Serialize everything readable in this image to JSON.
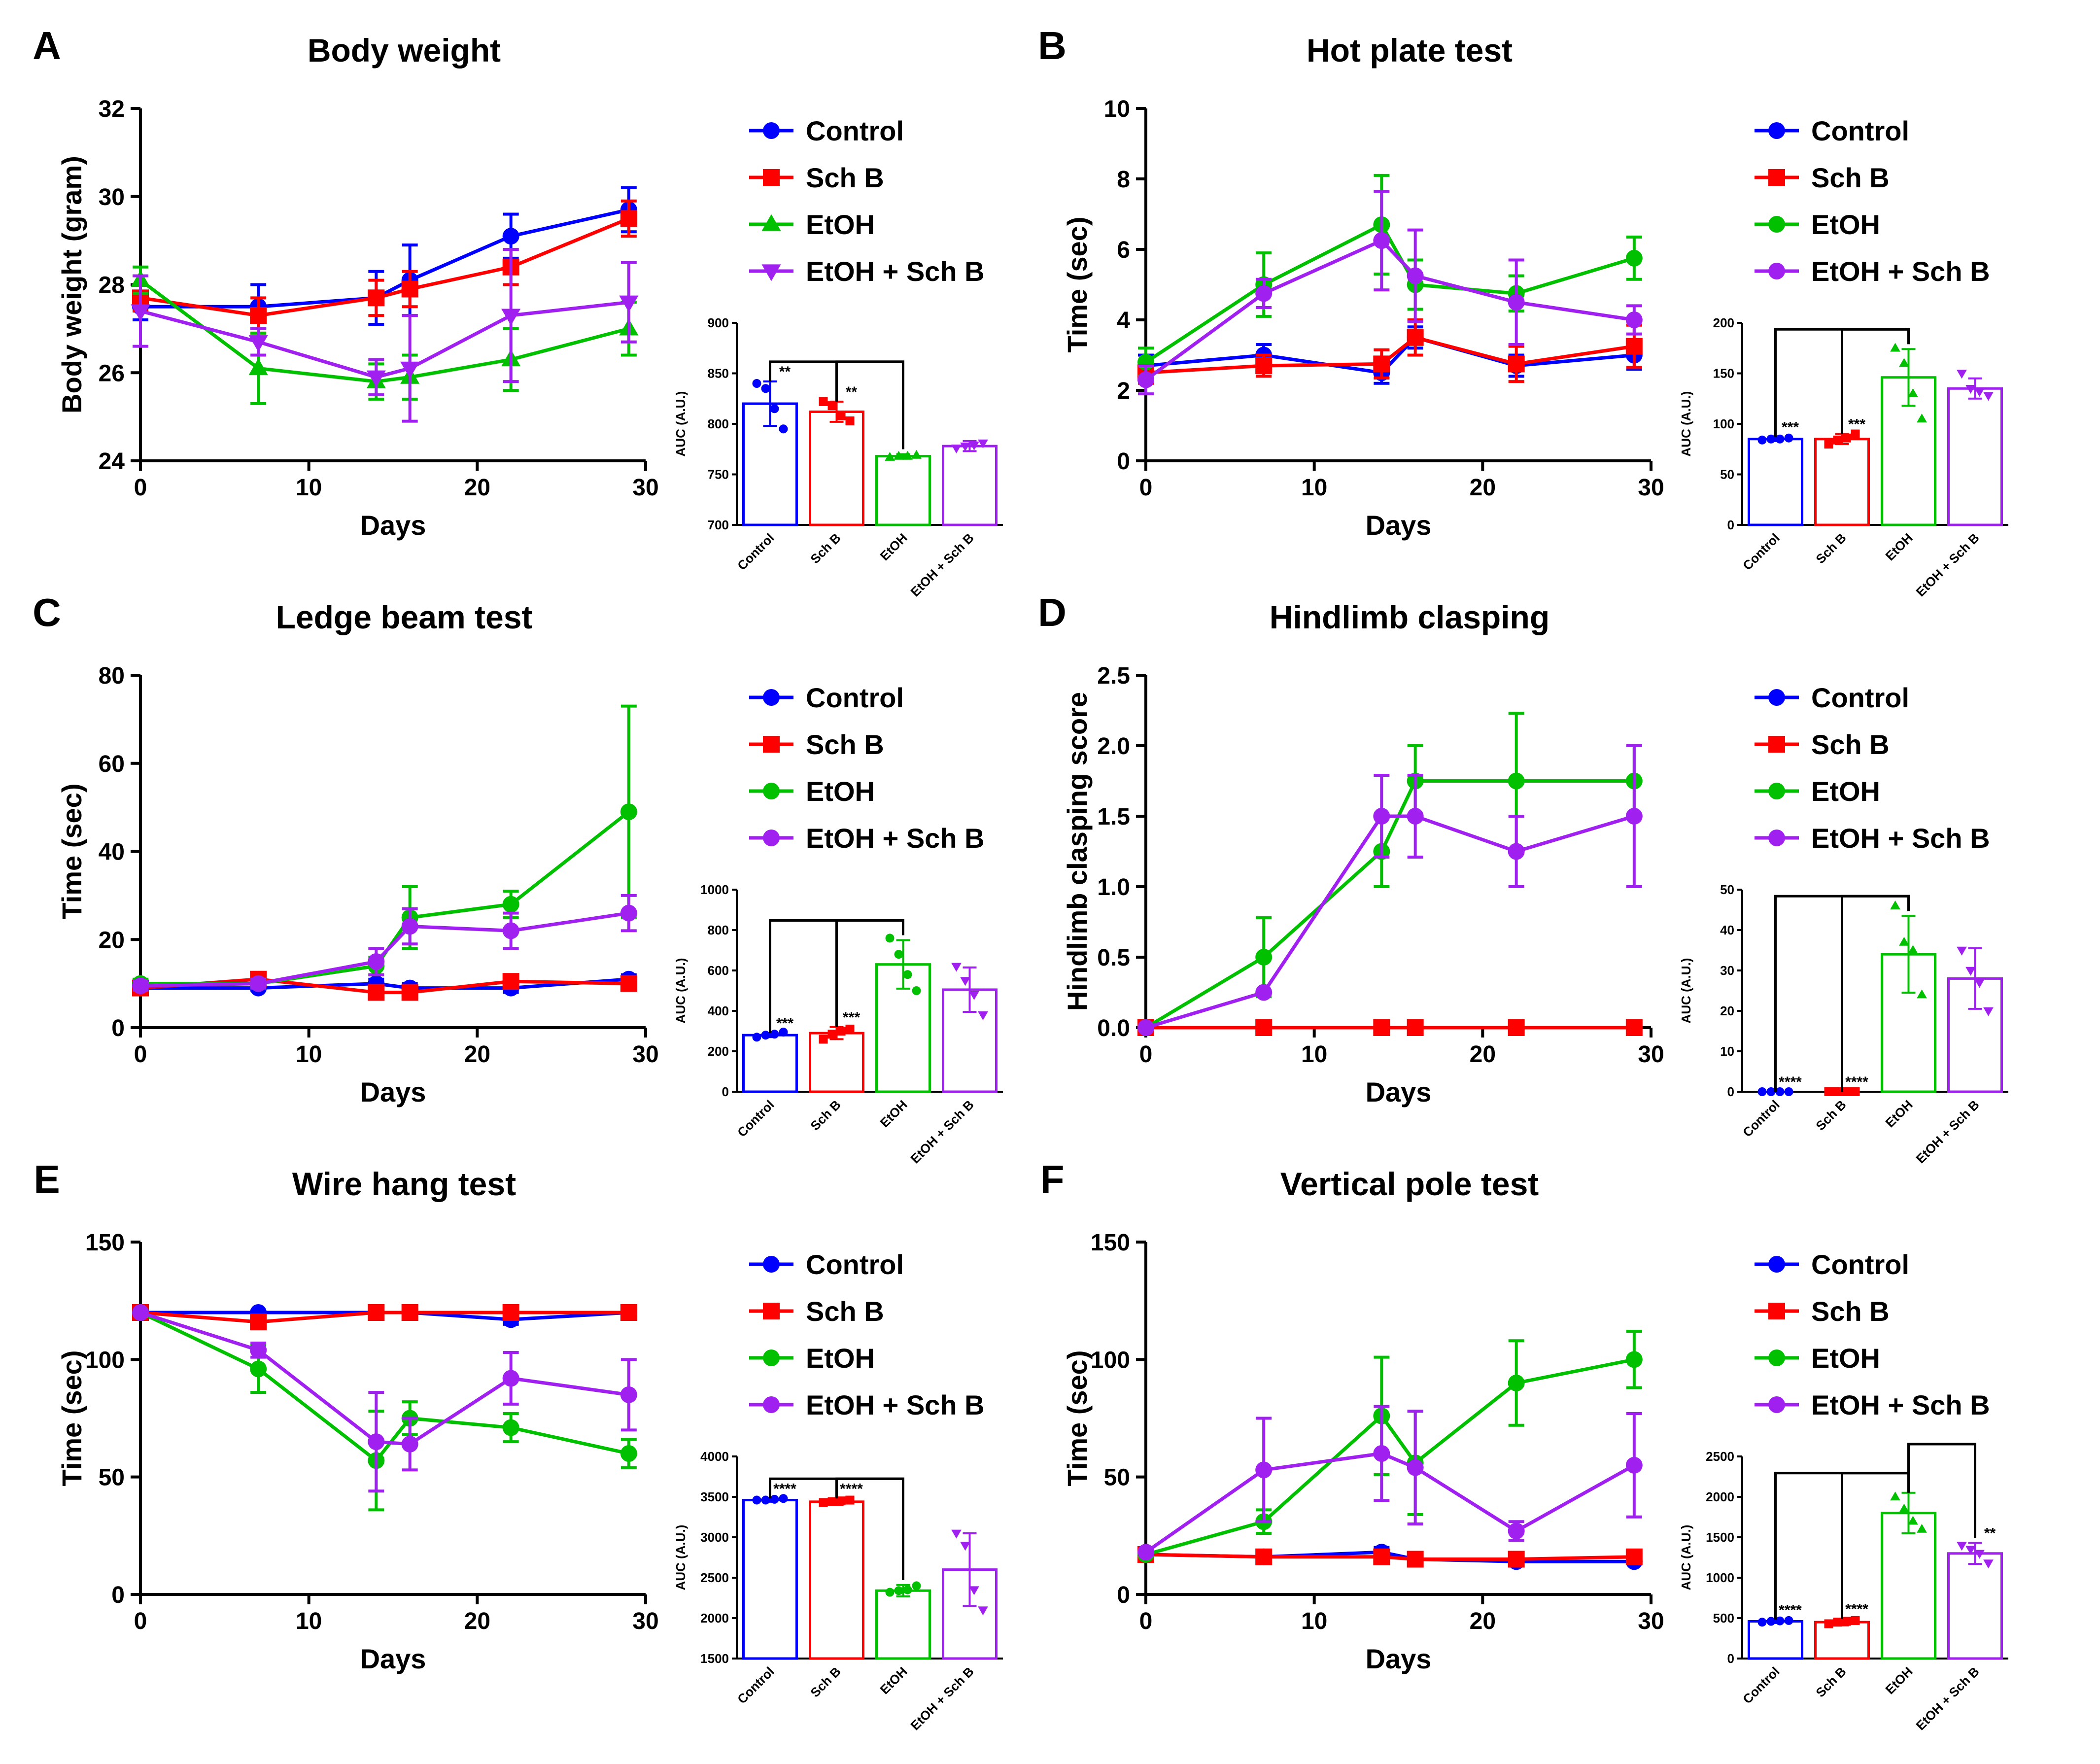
{
  "series_meta": [
    {
      "name": "Control",
      "color": "#0000ff",
      "marker": "circle"
    },
    {
      "name": "Sch B",
      "color": "#ff0000",
      "marker": "square"
    },
    {
      "name": "EtOH",
      "color": "#00c000",
      "marker": "circle"
    },
    {
      "name": "EtOH + Sch B",
      "color": "#a020f0",
      "marker": "circle"
    }
  ],
  "chart_data": [
    {
      "panel": "A",
      "type": "line",
      "title": "Body weight",
      "xlabel": "Days",
      "ylabel": "Body weight (gram)",
      "xlim": [
        0,
        30
      ],
      "xticks": [
        0,
        10,
        20,
        30
      ],
      "ylim": [
        24,
        32
      ],
      "yticks": [
        24,
        26,
        28,
        30,
        32
      ],
      "x": [
        0,
        7,
        14,
        16,
        22,
        29
      ],
      "markers": [
        "circle",
        "square",
        "triangle-up",
        "triangle-down"
      ],
      "series": [
        {
          "name": "Control",
          "values": [
            27.5,
            27.5,
            27.7,
            28.1,
            29.1,
            29.7
          ],
          "err": [
            0.3,
            0.5,
            0.6,
            0.8,
            0.5,
            0.5
          ]
        },
        {
          "name": "Sch B",
          "values": [
            27.7,
            27.3,
            27.7,
            27.9,
            28.4,
            29.5
          ],
          "err": [
            0.3,
            0.4,
            0.4,
            0.4,
            0.4,
            0.4
          ]
        },
        {
          "name": "EtOH",
          "values": [
            28.1,
            26.1,
            25.8,
            25.9,
            26.3,
            27.0
          ],
          "err": [
            0.3,
            0.8,
            0.4,
            0.5,
            0.7,
            0.6
          ]
        },
        {
          "name": "EtOH + Sch B",
          "values": [
            27.4,
            26.7,
            25.9,
            26.1,
            27.3,
            27.6
          ],
          "err": [
            0.8,
            0.3,
            0.4,
            1.2,
            1.5,
            0.9
          ]
        }
      ],
      "auc": {
        "ylim": [
          700,
          900
        ],
        "yticks": [
          700,
          750,
          800,
          850,
          900
        ],
        "ylabel": "AUC (A.U.)",
        "values": [
          820,
          812,
          768,
          778
        ],
        "err": [
          22,
          10,
          2,
          5
        ],
        "points": [
          [
            840,
            835,
            815,
            795
          ],
          [
            822,
            818,
            808,
            803
          ],
          [
            767,
            768,
            768,
            769
          ],
          [
            776,
            778,
            779,
            781
          ]
        ],
        "sig": [
          "**",
          "**",
          "",
          ""
        ],
        "brackets": [
          [
            0,
            2
          ],
          [
            1,
            2
          ]
        ]
      }
    },
    {
      "panel": "B",
      "type": "line",
      "title": "Hot plate test",
      "xlabel": "Days",
      "ylabel": "Time (sec)",
      "xlim": [
        0,
        30
      ],
      "xticks": [
        0,
        10,
        20,
        30
      ],
      "ylim": [
        0,
        10
      ],
      "yticks": [
        0,
        2,
        4,
        6,
        8,
        10
      ],
      "x": [
        0,
        7,
        14,
        16,
        22,
        29
      ],
      "markers": [
        "circle",
        "square",
        "circle",
        "circle"
      ],
      "series": [
        {
          "name": "Control",
          "values": [
            2.7,
            3.0,
            2.5,
            3.5,
            2.7,
            3.0
          ],
          "err": [
            0.3,
            0.3,
            0.3,
            0.3,
            0.3,
            0.4
          ]
        },
        {
          "name": "Sch B",
          "values": [
            2.5,
            2.7,
            2.75,
            3.5,
            2.75,
            3.25
          ],
          "err": [
            0.3,
            0.3,
            0.4,
            0.5,
            0.5,
            0.6
          ]
        },
        {
          "name": "EtOH",
          "values": [
            2.8,
            5.0,
            6.7,
            5.0,
            4.75,
            5.75
          ],
          "err": [
            0.4,
            0.9,
            1.4,
            0.7,
            0.5,
            0.6
          ]
        },
        {
          "name": "EtOH + Sch B",
          "values": [
            2.3,
            4.75,
            6.25,
            5.25,
            4.5,
            4.0
          ],
          "err": [
            0.4,
            0.4,
            1.4,
            1.3,
            1.2,
            0.4
          ]
        }
      ],
      "auc": {
        "ylim": [
          0,
          200
        ],
        "yticks": [
          0,
          50,
          100,
          150,
          200
        ],
        "ylabel": "AUC (A.U.)",
        "values": [
          85,
          85,
          146,
          135
        ],
        "err": [
          2,
          5,
          28,
          10
        ],
        "points": [
          [
            84,
            85,
            85,
            86
          ],
          [
            80,
            84,
            86,
            90
          ],
          [
            175,
            160,
            130,
            105
          ],
          [
            150,
            135,
            132,
            128
          ]
        ],
        "sig": [
          "***",
          "***",
          "",
          ""
        ],
        "brackets": [
          [
            0,
            2
          ],
          [
            1,
            2
          ]
        ]
      }
    },
    {
      "panel": "C",
      "type": "line",
      "title": "Ledge beam test",
      "xlabel": "Days",
      "ylabel": "Time (sec)",
      "xlim": [
        0,
        30
      ],
      "xticks": [
        0,
        10,
        20,
        30
      ],
      "ylim": [
        0,
        80
      ],
      "yticks": [
        0,
        20,
        40,
        60,
        80
      ],
      "x": [
        0,
        7,
        14,
        16,
        22,
        29
      ],
      "markers": [
        "circle",
        "square",
        "circle",
        "circle"
      ],
      "series": [
        {
          "name": "Control",
          "values": [
            9,
            9,
            10,
            9,
            9,
            11
          ],
          "err": [
            1,
            0.5,
            1,
            1,
            1,
            1
          ]
        },
        {
          "name": "Sch B",
          "values": [
            9,
            11,
            8,
            8,
            10.5,
            10
          ],
          "err": [
            1,
            1,
            1,
            1,
            1,
            1
          ]
        },
        {
          "name": "EtOH",
          "values": [
            10,
            10,
            14,
            25,
            28,
            49
          ],
          "err": [
            1,
            1,
            2,
            7,
            3,
            24
          ]
        },
        {
          "name": "EtOH + Sch B",
          "values": [
            9.5,
            10,
            15,
            23,
            22,
            26
          ],
          "err": [
            1,
            1,
            3,
            4,
            4,
            4
          ]
        }
      ],
      "auc": {
        "ylim": [
          0,
          1000
        ],
        "yticks": [
          0,
          200,
          400,
          600,
          800,
          1000
        ],
        "ylabel": "AUC (A.U.)",
        "values": [
          280,
          290,
          630,
          505
        ],
        "err": [
          10,
          30,
          120,
          110
        ],
        "points": [
          [
            270,
            280,
            285,
            295
          ],
          [
            260,
            285,
            300,
            310
          ],
          [
            760,
            680,
            580,
            500
          ],
          [
            620,
            550,
            480,
            380
          ]
        ],
        "sig": [
          "***",
          "***",
          "",
          ""
        ],
        "brackets": [
          [
            0,
            2
          ],
          [
            1,
            2
          ]
        ]
      }
    },
    {
      "panel": "D",
      "type": "line",
      "title": "Hindlimb clasping",
      "xlabel": "Days",
      "ylabel": "Hindlimb clasping score",
      "xlim": [
        0,
        30
      ],
      "xticks": [
        0,
        10,
        20,
        30
      ],
      "ylim": [
        0,
        2.5
      ],
      "yticks": [
        0.0,
        0.5,
        1.0,
        1.5,
        2.0,
        2.5
      ],
      "x": [
        0,
        7,
        14,
        16,
        22,
        29
      ],
      "markers": [
        "circle",
        "square",
        "circle",
        "circle"
      ],
      "series": [
        {
          "name": "Control",
          "values": [
            0,
            0,
            0,
            0,
            0,
            0
          ],
          "err": [
            0,
            0,
            0,
            0,
            0,
            0
          ]
        },
        {
          "name": "Sch B",
          "values": [
            0,
            0,
            0,
            0,
            0,
            0
          ],
          "err": [
            0,
            0,
            0,
            0,
            0,
            0
          ]
        },
        {
          "name": "EtOH",
          "values": [
            0,
            0.5,
            1.25,
            1.75,
            1.75,
            1.75
          ],
          "err": [
            0,
            0.28,
            0.25,
            0.25,
            0.48,
            0.25
          ]
        },
        {
          "name": "EtOH + Sch B",
          "values": [
            0,
            0.25,
            1.5,
            1.5,
            1.25,
            1.5
          ],
          "err": [
            0,
            0,
            0.29,
            0.29,
            0.25,
            0.5
          ]
        }
      ],
      "auc": {
        "ylim": [
          0,
          50
        ],
        "yticks": [
          0,
          10,
          20,
          30,
          40,
          50
        ],
        "ylabel": "AUC (A.U.)",
        "values": [
          0,
          0,
          34,
          28
        ],
        "err": [
          0,
          0,
          9.5,
          7.5
        ],
        "points": [
          [
            0,
            0,
            0,
            0
          ],
          [
            0,
            0,
            0,
            0
          ],
          [
            46,
            37,
            35,
            24
          ],
          [
            35,
            30,
            27,
            20
          ]
        ],
        "sig": [
          "****",
          "****",
          "",
          ""
        ],
        "brackets": [
          [
            0,
            2
          ],
          [
            1,
            2
          ]
        ]
      }
    },
    {
      "panel": "E",
      "type": "line",
      "title": "Wire hang test",
      "xlabel": "Days",
      "ylabel": "Time (sec)",
      "xlim": [
        0,
        30
      ],
      "xticks": [
        0,
        10,
        20,
        30
      ],
      "ylim": [
        0,
        150
      ],
      "yticks": [
        0,
        50,
        100,
        150
      ],
      "x": [
        0,
        7,
        14,
        16,
        22,
        29
      ],
      "markers": [
        "circle",
        "square",
        "circle",
        "circle"
      ],
      "series": [
        {
          "name": "Control",
          "values": [
            120,
            120,
            120,
            120,
            117,
            120
          ],
          "err": [
            0,
            0,
            0,
            0,
            2,
            0
          ]
        },
        {
          "name": "Sch B",
          "values": [
            120,
            116,
            120,
            120,
            120,
            120
          ],
          "err": [
            0,
            2,
            0,
            0,
            0,
            0
          ]
        },
        {
          "name": "EtOH",
          "values": [
            120,
            96,
            57,
            75,
            71,
            60
          ],
          "err": [
            0,
            10,
            21,
            7,
            6,
            6
          ]
        },
        {
          "name": "EtOH + Sch B",
          "values": [
            120,
            104,
            65,
            64,
            92,
            85
          ],
          "err": [
            0,
            3,
            21,
            11,
            11,
            15
          ]
        }
      ],
      "auc": {
        "ylim": [
          1500,
          4000
        ],
        "yticks": [
          1500,
          2000,
          2500,
          3000,
          3500,
          4000
        ],
        "ylabel": "AUC (A.U.)",
        "values": [
          3460,
          3440,
          2340,
          2600
        ],
        "err": [
          20,
          40,
          70,
          450
        ],
        "points": [
          [
            3460,
            3460,
            3470,
            3480
          ],
          [
            3430,
            3440,
            3450,
            3460
          ],
          [
            2320,
            2340,
            2350,
            2400
          ],
          [
            3050,
            2900,
            2350,
            2100
          ]
        ],
        "sig": [
          "****",
          "****",
          "",
          ""
        ],
        "brackets": [
          [
            0,
            2
          ],
          [
            1,
            2
          ]
        ]
      }
    },
    {
      "panel": "F",
      "type": "line",
      "title": "Vertical pole test",
      "xlabel": "Days",
      "ylabel": "Time (sec)",
      "xlim": [
        0,
        30
      ],
      "xticks": [
        0,
        10,
        20,
        30
      ],
      "ylim": [
        0,
        150
      ],
      "yticks": [
        0,
        50,
        100,
        150
      ],
      "x": [
        0,
        7,
        14,
        16,
        22,
        29
      ],
      "markers": [
        "circle",
        "square",
        "circle",
        "circle"
      ],
      "series": [
        {
          "name": "Control",
          "values": [
            17,
            16,
            18,
            15,
            14,
            14
          ],
          "err": [
            1,
            1,
            2,
            1,
            1,
            1
          ]
        },
        {
          "name": "Sch B",
          "values": [
            17,
            16,
            16,
            15,
            15,
            16
          ],
          "err": [
            1,
            1,
            1,
            1,
            1,
            1
          ]
        },
        {
          "name": "EtOH",
          "values": [
            17,
            31,
            76,
            56,
            90,
            100
          ],
          "err": [
            1,
            5,
            25,
            22,
            18,
            12
          ]
        },
        {
          "name": "EtOH + Sch B",
          "values": [
            18,
            53,
            60,
            54,
            27,
            55
          ],
          "err": [
            1,
            22,
            20,
            24,
            4,
            22
          ]
        }
      ],
      "auc": {
        "ylim": [
          0,
          2500
        ],
        "yticks": [
          0,
          500,
          1000,
          1500,
          2000,
          2500
        ],
        "ylabel": "AUC (A.U.)",
        "values": [
          460,
          450,
          1800,
          1300
        ],
        "err": [
          20,
          40,
          250,
          130
        ],
        "points": [
          [
            450,
            460,
            465,
            470
          ],
          [
            430,
            450,
            460,
            470
          ],
          [
            2000,
            1850,
            1700,
            1600
          ],
          [
            1400,
            1350,
            1300,
            1180
          ]
        ],
        "sig": [
          "****",
          "****",
          "",
          "**"
        ],
        "brackets": [
          [
            0,
            2
          ],
          [
            1,
            2
          ],
          [
            2,
            3
          ]
        ]
      }
    }
  ]
}
